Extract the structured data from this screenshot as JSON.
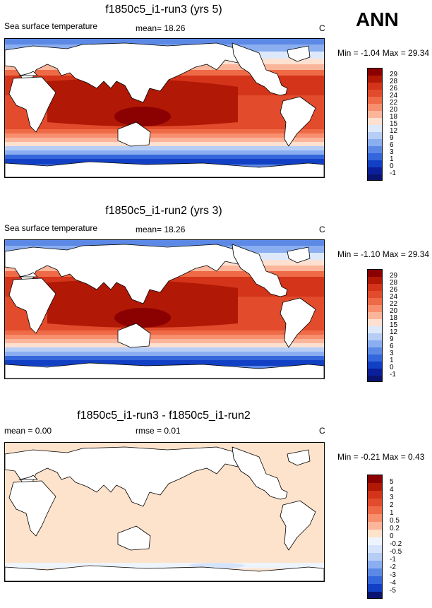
{
  "season": "ANN",
  "units": "C",
  "panels": [
    {
      "title": "f1850c5_i1-run3 (yrs 5)",
      "field": "Sea surface temperature",
      "stat": "mean=  18.26",
      "minmax": "Min =  -1.04 Max =  29.34",
      "levels": [
        "29",
        "28",
        "26",
        "24",
        "22",
        "20",
        "18",
        "15",
        "12",
        "9",
        "6",
        "3",
        "1",
        "0",
        "-1"
      ],
      "colors": [
        "#8b0000",
        "#b11806",
        "#d3341a",
        "#e24b2c",
        "#ef6a47",
        "#f78e6e",
        "#fbb59b",
        "#fde0d0",
        "#dde9fb",
        "#b6cdf6",
        "#8aaef0",
        "#5c89e6",
        "#3466dc",
        "#1240c4",
        "#0b1f9a",
        "#0a1470"
      ]
    },
    {
      "title": "f1850c5_i1-run2 (yrs 3)",
      "field": "Sea surface temperature",
      "stat": "mean=  18.26",
      "minmax": "Min =  -1.10 Max =  29.34",
      "levels": [
        "29",
        "28",
        "26",
        "24",
        "22",
        "20",
        "18",
        "15",
        "12",
        "9",
        "6",
        "3",
        "1",
        "0",
        "-1"
      ],
      "colors": [
        "#8b0000",
        "#b11806",
        "#d3341a",
        "#e24b2c",
        "#ef6a47",
        "#f78e6e",
        "#fbb59b",
        "#fde0d0",
        "#dde9fb",
        "#b6cdf6",
        "#8aaef0",
        "#5c89e6",
        "#3466dc",
        "#1240c4",
        "#0b1f9a",
        "#0a1470"
      ]
    },
    {
      "title": "f1850c5_i1-run3 - f1850c5_i1-run2",
      "mean": "mean =  0.00",
      "rmse": "rmse =  0.01",
      "minmax": "Min =  -0.21 Max =   0.43",
      "levels": [
        "5",
        "4",
        "3",
        "2",
        "1",
        "0.5",
        "0.2",
        "0",
        "-0.2",
        "-0.5",
        "-1",
        "-2",
        "-3",
        "-4",
        "-5"
      ],
      "colors": [
        "#8b0000",
        "#b11806",
        "#d3341a",
        "#e24b2c",
        "#ef6a47",
        "#f78e6e",
        "#fbb59b",
        "#fde2cc",
        "#eef4fd",
        "#d6e4fb",
        "#b6cdf6",
        "#8aaef0",
        "#5c89e6",
        "#3466dc",
        "#1240c4",
        "#0a1470"
      ]
    }
  ]
}
